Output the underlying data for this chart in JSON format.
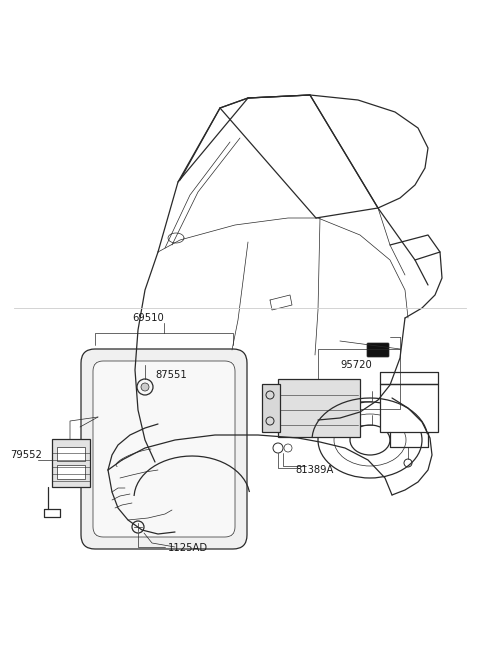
{
  "bg_color": "#ffffff",
  "line_color": "#2a2a2a",
  "text_color": "#1a1a1a",
  "font_size_label": 7.2,
  "gray_line": "#aaaaaa"
}
